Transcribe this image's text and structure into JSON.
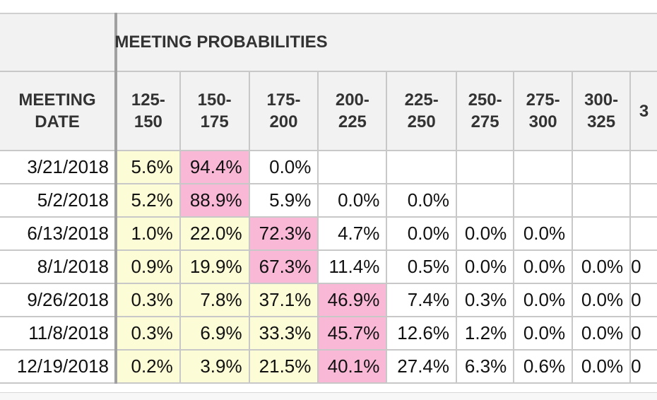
{
  "table": {
    "banner": "MEETING PROBABILITIES",
    "date_header": [
      "MEETING",
      "DATE"
    ],
    "columns": [
      [
        "125-",
        "150"
      ],
      [
        "150-",
        "175"
      ],
      [
        "175-",
        "200"
      ],
      [
        "200-",
        "225"
      ],
      [
        "225-",
        "250"
      ],
      [
        "250-",
        "275"
      ],
      [
        "275-",
        "300"
      ],
      [
        "300-",
        "325"
      ],
      [
        "3",
        ""
      ]
    ],
    "rows": [
      {
        "date": "3/21/2018",
        "cells": [
          {
            "v": "5.6%",
            "h": "y"
          },
          {
            "v": "94.4%",
            "h": "p"
          },
          {
            "v": "0.0%",
            "h": ""
          },
          {
            "v": "",
            "h": ""
          },
          {
            "v": "",
            "h": ""
          },
          {
            "v": "",
            "h": ""
          },
          {
            "v": "",
            "h": ""
          },
          {
            "v": "",
            "h": ""
          },
          {
            "v": "",
            "h": ""
          }
        ]
      },
      {
        "date": "5/2/2018",
        "cells": [
          {
            "v": "5.2%",
            "h": "y"
          },
          {
            "v": "88.9%",
            "h": "p"
          },
          {
            "v": "5.9%",
            "h": ""
          },
          {
            "v": "0.0%",
            "h": ""
          },
          {
            "v": "0.0%",
            "h": ""
          },
          {
            "v": "",
            "h": ""
          },
          {
            "v": "",
            "h": ""
          },
          {
            "v": "",
            "h": ""
          },
          {
            "v": "",
            "h": ""
          }
        ]
      },
      {
        "date": "6/13/2018",
        "cells": [
          {
            "v": "1.0%",
            "h": "y"
          },
          {
            "v": "22.0%",
            "h": "y"
          },
          {
            "v": "72.3%",
            "h": "p"
          },
          {
            "v": "4.7%",
            "h": ""
          },
          {
            "v": "0.0%",
            "h": ""
          },
          {
            "v": "0.0%",
            "h": ""
          },
          {
            "v": "0.0%",
            "h": ""
          },
          {
            "v": "",
            "h": ""
          },
          {
            "v": "",
            "h": ""
          }
        ]
      },
      {
        "date": "8/1/2018",
        "cells": [
          {
            "v": "0.9%",
            "h": "y"
          },
          {
            "v": "19.9%",
            "h": "y"
          },
          {
            "v": "67.3%",
            "h": "p"
          },
          {
            "v": "11.4%",
            "h": ""
          },
          {
            "v": "0.5%",
            "h": ""
          },
          {
            "v": "0.0%",
            "h": ""
          },
          {
            "v": "0.0%",
            "h": ""
          },
          {
            "v": "0.0%",
            "h": ""
          },
          {
            "v": "0",
            "h": ""
          }
        ]
      },
      {
        "date": "9/26/2018",
        "cells": [
          {
            "v": "0.3%",
            "h": "y"
          },
          {
            "v": "7.8%",
            "h": "y"
          },
          {
            "v": "37.1%",
            "h": "y"
          },
          {
            "v": "46.9%",
            "h": "p"
          },
          {
            "v": "7.4%",
            "h": ""
          },
          {
            "v": "0.3%",
            "h": ""
          },
          {
            "v": "0.0%",
            "h": ""
          },
          {
            "v": "0.0%",
            "h": ""
          },
          {
            "v": "0",
            "h": ""
          }
        ]
      },
      {
        "date": "11/8/2018",
        "cells": [
          {
            "v": "0.3%",
            "h": "y"
          },
          {
            "v": "6.9%",
            "h": "y"
          },
          {
            "v": "33.3%",
            "h": "y"
          },
          {
            "v": "45.7%",
            "h": "p"
          },
          {
            "v": "12.6%",
            "h": ""
          },
          {
            "v": "1.2%",
            "h": ""
          },
          {
            "v": "0.0%",
            "h": ""
          },
          {
            "v": "0.0%",
            "h": ""
          },
          {
            "v": "0",
            "h": ""
          }
        ]
      },
      {
        "date": "12/19/2018",
        "cells": [
          {
            "v": "0.2%",
            "h": "y"
          },
          {
            "v": "3.9%",
            "h": "y"
          },
          {
            "v": "21.5%",
            "h": "y"
          },
          {
            "v": "40.1%",
            "h": "p"
          },
          {
            "v": "27.4%",
            "h": ""
          },
          {
            "v": "6.3%",
            "h": ""
          },
          {
            "v": "0.6%",
            "h": ""
          },
          {
            "v": "0.0%",
            "h": ""
          },
          {
            "v": "0",
            "h": ""
          }
        ]
      }
    ]
  },
  "colors": {
    "yellow_highlight": "#fcfcd6",
    "pink_highlight": "#f9b8d6"
  }
}
